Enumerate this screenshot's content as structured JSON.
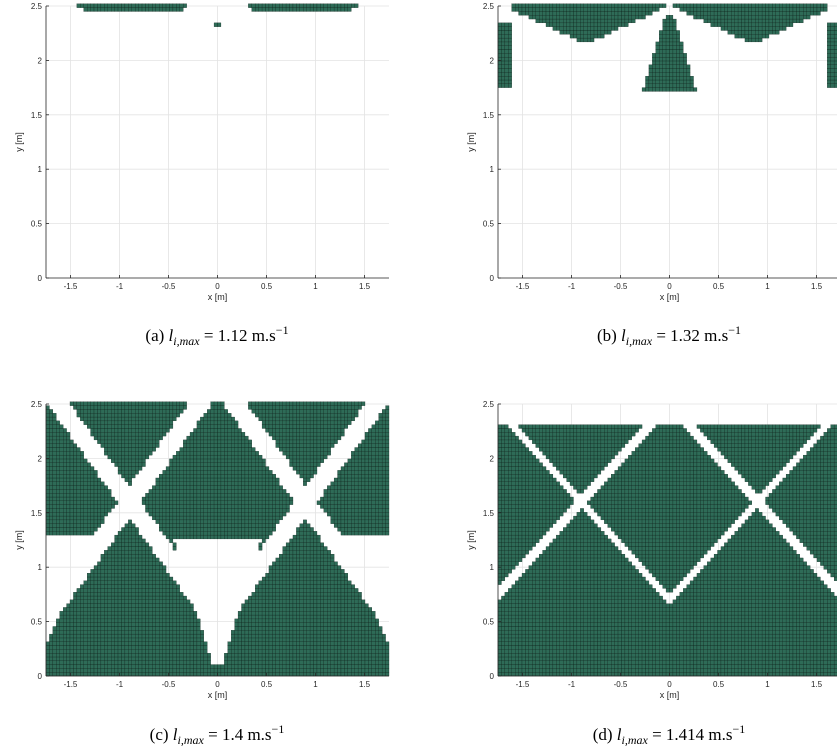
{
  "colors": {
    "fill": "#2e6b57",
    "cell_edge": "#0b221a",
    "grid": "#e3e3e3",
    "axis": "#262626",
    "background": "#ffffff"
  },
  "chart_data": [
    {
      "type": "heatmap",
      "panel": "a",
      "caption": {
        "prefix": "(a) ",
        "symbol": "l",
        "subscript": "i,max",
        "equals": " = 1.12 m.s",
        "superscript": "−1"
      },
      "xlabel": "x [m]",
      "ylabel": "y [m]",
      "xlim": [
        -1.75,
        1.75
      ],
      "ylim": [
        0,
        2.5
      ],
      "xticks": [
        "-1.5",
        "-1",
        "-0.5",
        "0",
        "0.5",
        "1",
        "1.5"
      ],
      "yticks": [
        "0",
        "0.5",
        "1",
        "1.5",
        "2",
        "2.5"
      ],
      "grid": true,
      "threshold": 1.12
    },
    {
      "type": "heatmap",
      "panel": "b",
      "caption": {
        "prefix": "(b) ",
        "symbol": "l",
        "subscript": "i,max",
        "equals": " = 1.32 m.s",
        "superscript": "−1"
      },
      "xlabel": "x [m]",
      "ylabel": "y [m]",
      "xlim": [
        -1.75,
        1.75
      ],
      "ylim": [
        0,
        2.5
      ],
      "xticks": [
        "-1.5",
        "-1",
        "-0.5",
        "0",
        "0.5",
        "1",
        "1.5"
      ],
      "yticks": [
        "0",
        "0.5",
        "1",
        "1.5",
        "2",
        "2.5"
      ],
      "grid": true,
      "threshold": 1.32
    },
    {
      "type": "heatmap",
      "panel": "c",
      "caption": {
        "prefix": "(c) ",
        "symbol": "l",
        "subscript": "i,max",
        "equals": " = 1.4 m.s",
        "superscript": "−1"
      },
      "xlabel": "x [m]",
      "ylabel": "y [m]",
      "xlim": [
        -1.75,
        1.75
      ],
      "ylim": [
        0,
        2.5
      ],
      "xticks": [
        "-1.5",
        "-1",
        "-0.5",
        "0",
        "0.5",
        "1",
        "1.5"
      ],
      "yticks": [
        "0",
        "0.5",
        "1",
        "1.5",
        "2",
        "2.5"
      ],
      "grid": true,
      "threshold": 1.4
    },
    {
      "type": "heatmap",
      "panel": "d",
      "caption": {
        "prefix": "(d) ",
        "symbol": "l",
        "subscript": "i,max",
        "equals": " = 1.414 m.s",
        "superscript": "−1"
      },
      "xlabel": "x [m]",
      "ylabel": "y [m]",
      "xlim": [
        -1.75,
        1.75
      ],
      "ylim": [
        0,
        2.5
      ],
      "xticks": [
        "-1.5",
        "-1",
        "-0.5",
        "0",
        "0.5",
        "1",
        "1.5"
      ],
      "yticks": [
        "0",
        "0.5",
        "1",
        "1.5",
        "2",
        "2.5"
      ],
      "grid": true,
      "threshold": 1.414
    }
  ]
}
